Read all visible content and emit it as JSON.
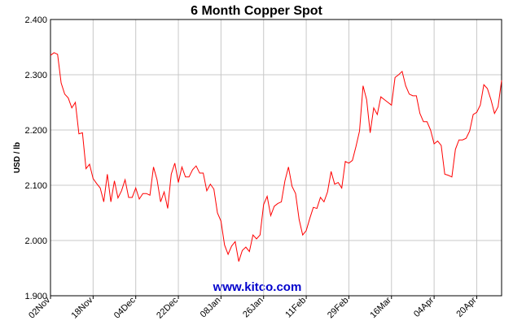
{
  "chart_data": {
    "type": "line",
    "title": "6 Month Copper Spot",
    "y_label": "USD / lb",
    "watermark": "www.kitco.com",
    "categories": [
      "02Nov",
      null,
      null,
      null,
      null,
      null,
      null,
      null,
      null,
      null,
      null,
      null,
      "18Nov",
      null,
      null,
      null,
      null,
      null,
      null,
      null,
      null,
      null,
      null,
      null,
      "04Dec",
      null,
      null,
      null,
      null,
      null,
      null,
      null,
      null,
      null,
      null,
      null,
      "22Dec",
      null,
      null,
      null,
      null,
      null,
      null,
      null,
      null,
      null,
      null,
      null,
      "08Jan",
      null,
      null,
      null,
      null,
      null,
      null,
      null,
      null,
      null,
      null,
      null,
      "26Jan",
      null,
      null,
      null,
      null,
      null,
      null,
      null,
      null,
      null,
      null,
      null,
      "11Feb",
      null,
      null,
      null,
      null,
      null,
      null,
      null,
      null,
      null,
      null,
      null,
      "29Feb",
      null,
      null,
      null,
      null,
      null,
      null,
      null,
      null,
      null,
      null,
      null,
      "16Mar",
      null,
      null,
      null,
      null,
      null,
      null,
      null,
      null,
      null,
      null,
      null,
      "04Apr",
      null,
      null,
      null,
      null,
      null,
      null,
      null,
      null,
      null,
      null,
      null,
      "20Apr",
      null,
      null,
      null,
      null,
      null,
      null,
      null
    ],
    "series": [
      {
        "name": "Copper",
        "color": "#ff0000",
        "values": [
          2.335,
          2.34,
          2.337,
          2.285,
          2.265,
          2.258,
          2.24,
          2.25,
          2.193,
          2.195,
          2.13,
          2.138,
          2.112,
          2.103,
          2.095,
          2.07,
          2.12,
          2.07,
          2.108,
          2.077,
          2.09,
          2.11,
          2.078,
          2.078,
          2.095,
          2.075,
          2.085,
          2.085,
          2.082,
          2.133,
          2.11,
          2.07,
          2.088,
          2.058,
          2.12,
          2.14,
          2.105,
          2.133,
          2.115,
          2.115,
          2.128,
          2.135,
          2.122,
          2.122,
          2.09,
          2.102,
          2.093,
          2.05,
          2.035,
          1.992,
          1.975,
          1.99,
          1.998,
          1.962,
          1.982,
          1.988,
          1.98,
          2.01,
          2.003,
          2.01,
          2.065,
          2.08,
          2.045,
          2.062,
          2.067,
          2.07,
          2.108,
          2.133,
          2.098,
          2.085,
          2.038,
          2.01,
          2.018,
          2.04,
          2.06,
          2.058,
          2.078,
          2.07,
          2.088,
          2.125,
          2.102,
          2.105,
          2.095,
          2.143,
          2.14,
          2.145,
          2.17,
          2.198,
          2.28,
          2.255,
          2.195,
          2.24,
          2.228,
          2.26,
          2.255,
          2.25,
          2.245,
          2.295,
          2.3,
          2.306,
          2.28,
          2.265,
          2.262,
          2.262,
          2.23,
          2.215,
          2.215,
          2.2,
          2.175,
          2.18,
          2.172,
          2.12,
          2.118,
          2.115,
          2.165,
          2.182,
          2.182,
          2.185,
          2.198,
          2.228,
          2.232,
          2.245,
          2.282,
          2.275,
          2.255,
          2.23,
          2.242,
          2.29
        ]
      }
    ],
    "ylim": [
      1.9,
      2.4
    ],
    "yticks": [
      {
        "value": 1.9,
        "label": "1.900"
      },
      {
        "value": 2.0,
        "label": "2.000"
      },
      {
        "value": 2.1,
        "label": "2.100"
      },
      {
        "value": 2.2,
        "label": "2.200"
      },
      {
        "value": 2.3,
        "label": "2.300"
      },
      {
        "value": 2.4,
        "label": "2.400"
      }
    ],
    "grid": true
  }
}
